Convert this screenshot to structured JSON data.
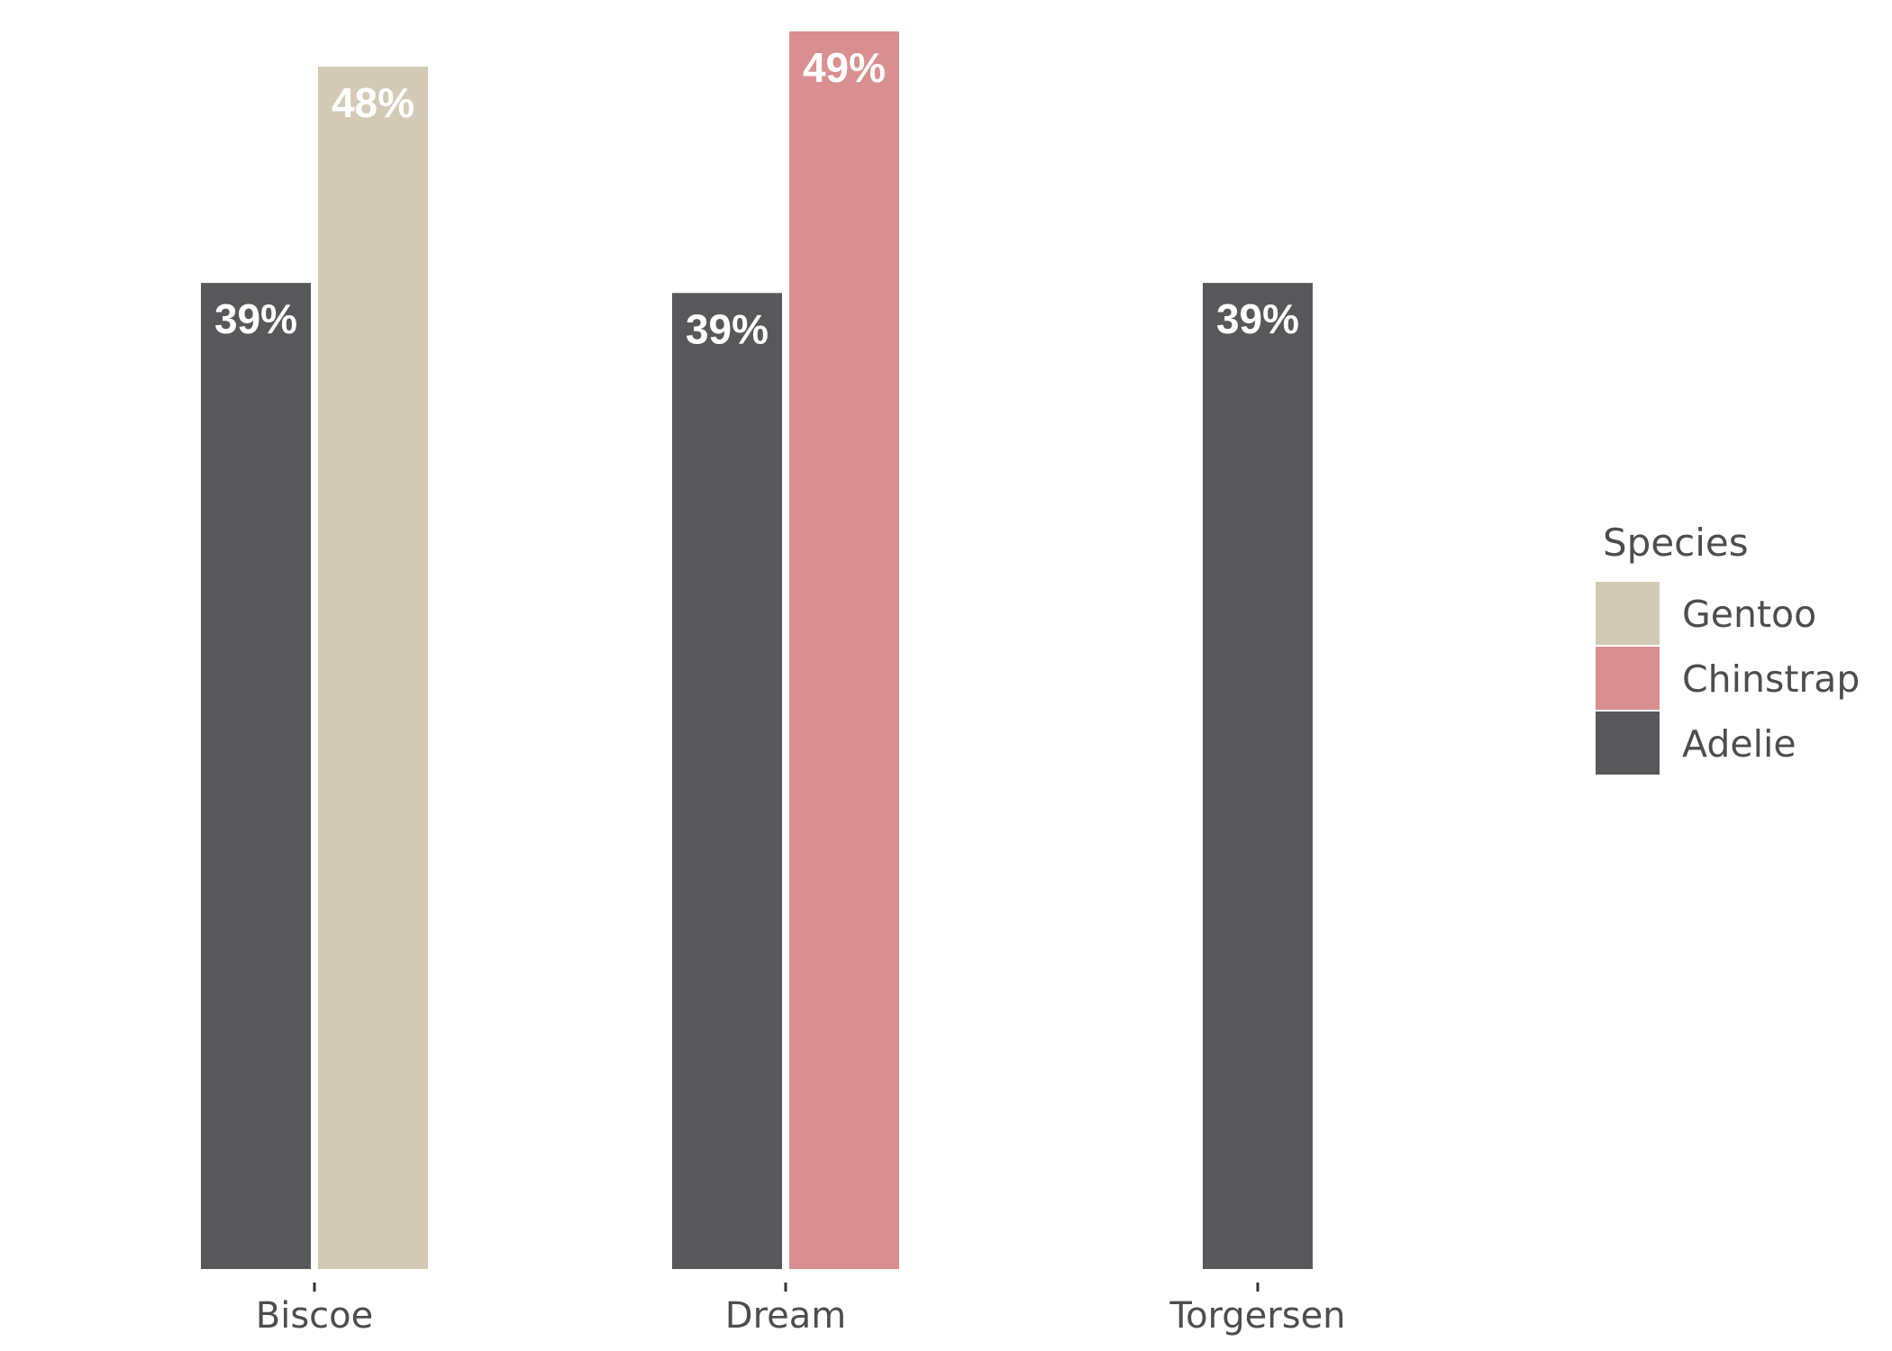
{
  "chart_data": {
    "type": "bar",
    "categories": [
      "Biscoe",
      "Dream",
      "Torgersen"
    ],
    "series": [
      {
        "name": "Adelie",
        "color": "#58585a",
        "values": [
          39.2,
          38.8,
          39.2
        ],
        "labels": [
          "39%",
          "39%",
          "39%"
        ]
      },
      {
        "name": "Gentoo",
        "color": "#d3cab6",
        "values": [
          47.8,
          null,
          null
        ],
        "labels": [
          "48%",
          null,
          null
        ]
      },
      {
        "name": "Chinstrap",
        "color": "#d98f90",
        "values": [
          null,
          49.2,
          null
        ],
        "labels": [
          null,
          "49%",
          null
        ]
      }
    ],
    "ylim": [
      0,
      50
    ],
    "grid": false,
    "y_axis_shown": false,
    "legend": {
      "title": "Species",
      "placement": "right",
      "entries": [
        {
          "label": "Gentoo",
          "color": "#d3cab6"
        },
        {
          "label": "Chinstrap",
          "color": "#d98f90"
        },
        {
          "label": "Adelie",
          "color": "#58585a"
        }
      ]
    }
  }
}
